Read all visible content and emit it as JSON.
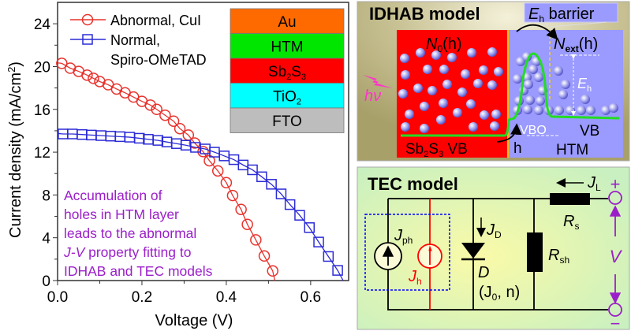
{
  "chart_data": {
    "type": "scatter",
    "xlabel": "Voltage (V)",
    "ylabel": "Current density (mA/cm2)",
    "xlim": [
      0,
      0.69
    ],
    "ylim": [
      0,
      26
    ],
    "xticks": [
      "0.0",
      "0.2",
      "0.4",
      "0.6"
    ],
    "xtick_values": [
      0,
      0.2,
      0.4,
      0.6
    ],
    "yticks": [
      "0",
      "4",
      "8",
      "12",
      "16",
      "20",
      "24"
    ],
    "ytick_values": [
      0,
      4,
      8,
      12,
      16,
      20,
      24
    ],
    "grid": false,
    "legend_placement": "top-left",
    "series": [
      {
        "name": "Abnormal, CuI",
        "marker": "circle",
        "color": "#e8322d",
        "voc": 0.515,
        "x": [
          0.01,
          0.03,
          0.05,
          0.07,
          0.085,
          0.1,
          0.12,
          0.14,
          0.16,
          0.18,
          0.2,
          0.22,
          0.235,
          0.255,
          0.275,
          0.29,
          0.31,
          0.325,
          0.345,
          0.36,
          0.38,
          0.4,
          0.415,
          0.435,
          0.45,
          0.47,
          0.49,
          0.51
        ],
        "y": [
          20.3,
          19.85,
          19.55,
          19.2,
          18.9,
          18.6,
          18.3,
          17.9,
          17.55,
          17.15,
          16.75,
          16.4,
          16.0,
          15.45,
          14.9,
          14.2,
          13.6,
          12.85,
          12.05,
          11.2,
          10.25,
          9.15,
          7.95,
          6.65,
          5.25,
          3.8,
          2.3,
          0.9
        ]
      },
      {
        "name": "Normal, Spiro-OMeTAD",
        "marker": "square",
        "color": "#2b2bd6",
        "voc": 0.677,
        "x": [
          0.013,
          0.035,
          0.058,
          0.08,
          0.103,
          0.126,
          0.148,
          0.171,
          0.194,
          0.215,
          0.238,
          0.259,
          0.282,
          0.304,
          0.327,
          0.35,
          0.372,
          0.395,
          0.418,
          0.44,
          0.462,
          0.484,
          0.507,
          0.53,
          0.551,
          0.574,
          0.597,
          0.619,
          0.642,
          0.664
        ],
        "y": [
          13.7,
          13.7,
          13.65,
          13.6,
          13.55,
          13.5,
          13.45,
          13.4,
          13.3,
          13.2,
          13.1,
          12.95,
          12.8,
          12.65,
          12.45,
          12.3,
          12.0,
          11.65,
          11.3,
          10.8,
          10.35,
          9.7,
          9.0,
          8.1,
          7.1,
          6.1,
          4.95,
          3.6,
          2.25,
          0.95
        ]
      }
    ],
    "legend": [
      "Abnormal, CuI",
      "Normal,",
      "Spiro-OMeTAD"
    ],
    "annotation": [
      "Accumulation of",
      "holes in HTM layer",
      "leads to the abnormal",
      "J-V",
      " property fitting to",
      "IDHAB and TEC models"
    ],
    "annotation_color": "#9b1fc9",
    "inset_layers": [
      {
        "label": "Au",
        "color": "#ff6a00"
      },
      {
        "label": "HTM",
        "color": "#00e600"
      },
      {
        "label": "Sb2S3",
        "color": "#ff0000"
      },
      {
        "label": "TiO2",
        "color": "#00ffff"
      },
      {
        "label": "FTO",
        "color": "#bdbdbd"
      }
    ]
  },
  "idhab": {
    "title": "IDHAB model",
    "barrier_label": "barrier",
    "E": "E",
    "h_sub": "h",
    "N0": "N",
    "N0_sub": "0",
    "N0_arg": "(h)",
    "Next": "N",
    "Next_sub": "ext",
    "Next_arg": "(h)",
    "hv": "hν",
    "vbo": "VBO",
    "vb": "VB",
    "htm": "HTM",
    "sb2s3_vb": "VB",
    "hole": "h",
    "colors": {
      "sb2s3": "#ff0000",
      "htm": "#9a9aff",
      "band": "#22dd22",
      "background": "#b3ac78"
    }
  },
  "tec": {
    "title": "TEC model",
    "JL": "J",
    "JL_sub": "L",
    "Rs": "R",
    "Rs_sub": "s",
    "Rsh": "R",
    "Rsh_sub": "sh",
    "Jph": "J",
    "Jph_sub": "ph",
    "Jh": "J",
    "Jh_sub": "h",
    "JD": "J",
    "JD_sub": "D",
    "D": "D",
    "D_params_open": "(J",
    "D_params_sub": "0",
    "D_params_close": ", n)",
    "V": "V",
    "plus": "+",
    "minus": "−",
    "colors": {
      "terminal": "#9b1fc9",
      "background": "#d6f3c0"
    }
  }
}
